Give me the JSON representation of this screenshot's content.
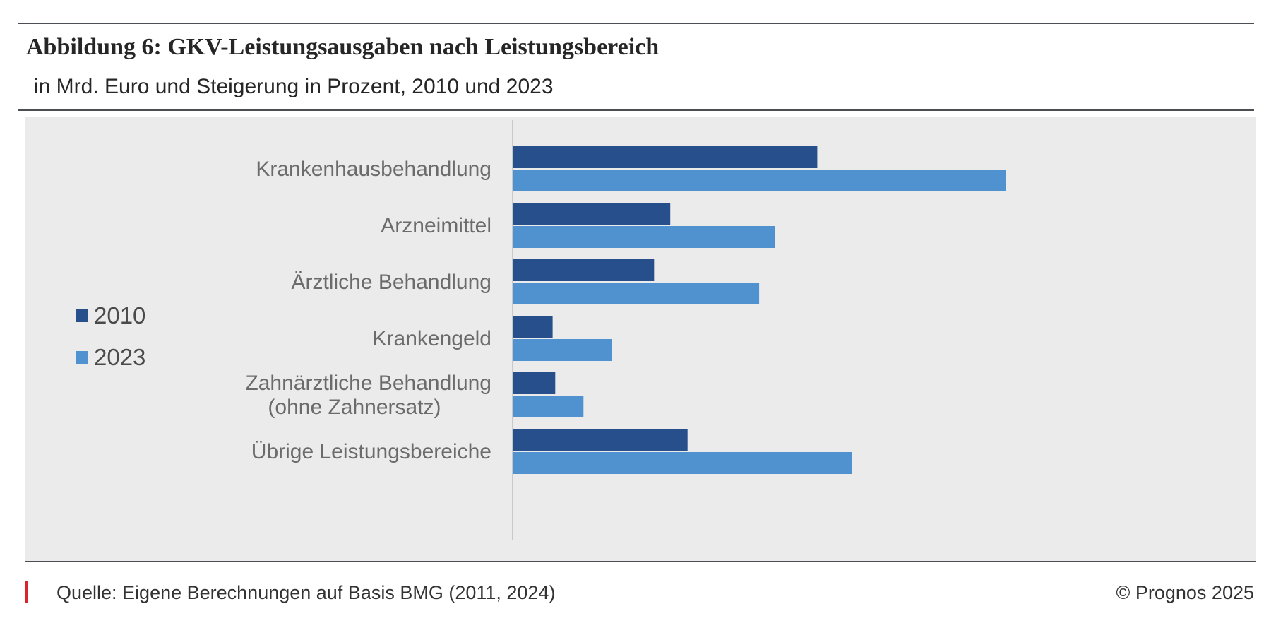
{
  "figure": {
    "title": "Abbildung 6: GKV-Leistungsausgaben nach Leistungsbereich",
    "subtitle": "in Mrd. Euro und Steigerung in Prozent, 2010 und 2023"
  },
  "chart_data": {
    "type": "bar",
    "orientation": "horizontal",
    "title": "Abbildung 6: GKV-Leistungsausgaben nach Leistungsbereich",
    "subtitle": "in Mrd. Euro und Steigerung in Prozent, 2010 und 2023",
    "categories": [
      [
        "Krankenhausbehandlung"
      ],
      [
        "Arzneimittel"
      ],
      [
        "Ärztliche Behandlung"
      ],
      [
        "Krankengeld"
      ],
      [
        "Zahnärztliche Behandlung",
        "(ohne Zahnersatz)"
      ],
      [
        "Übrige Leistungsbereiche"
      ]
    ],
    "series": [
      {
        "name": "2010",
        "color": "#264f8c",
        "values": [
          58.1,
          30.0,
          26.9,
          7.5,
          8.0,
          33.3
        ]
      },
      {
        "name": "2023",
        "color": "#4f92cf",
        "values": [
          94.1,
          50.0,
          47.0,
          18.9,
          13.4,
          64.7
        ]
      }
    ],
    "xlim": [
      0,
      135
    ],
    "xlabel": "",
    "ylabel": "",
    "grid": false,
    "legend_position": "left"
  },
  "footer": {
    "source": "Quelle: Eigene Berechnungen auf Basis BMG (2011, 2024)",
    "copyright": "© Prognos 2025"
  }
}
